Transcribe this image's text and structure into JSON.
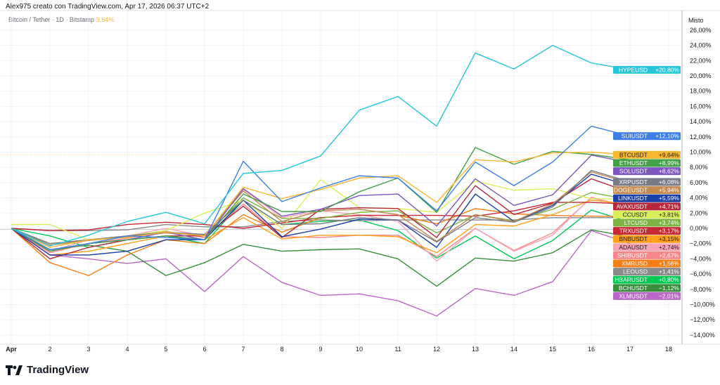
{
  "caption": "Alex975 creato con TradingView.com, Apr 17, 2026 06:37 UTC+2",
  "legend": {
    "symbol": "Bitcoin / Tether · 1D · Bitstamp",
    "value": "9,64%",
    "color": "#f7b731"
  },
  "axis_title": "Misto",
  "brand": "TradingView",
  "chart_data": {
    "type": "line",
    "x_tick_labels": [
      "Apr",
      "2",
      "3",
      "4",
      "5",
      "6",
      "7",
      "8",
      "9",
      "10",
      "11",
      "12",
      "13",
      "14",
      "15",
      "16",
      "17",
      "18"
    ],
    "x": [
      1,
      2,
      3,
      4,
      5,
      6,
      7,
      8,
      9,
      10,
      11,
      12,
      13,
      14,
      15,
      16,
      17
    ],
    "y_ticks": [
      "26,00%",
      "24,00%",
      "22,00%",
      "20,00%",
      "18,00%",
      "16,00%",
      "14,00%",
      "12,00%",
      "10,00%",
      "8,00%",
      "6,00%",
      "4,00%",
      "2,00%",
      "0,00%",
      "−2,00%",
      "−4,00%",
      "−6,00%",
      "−8,00%",
      "−10,00%",
      "−12,00%",
      "−14,00%"
    ],
    "ylim": [
      -15,
      27
    ],
    "xlim": [
      1,
      18.4
    ],
    "grid": true,
    "y_unit": "%",
    "series": [
      {
        "name": "HYPEUSD",
        "label": "+20,80%",
        "color": "#26c6da",
        "values": [
          0,
          -2.3,
          -0.9,
          0.9,
          2.1,
          0.6,
          7.2,
          7.6,
          9.5,
          15.5,
          17.3,
          13.4,
          23,
          20.9,
          24,
          21.7,
          20.8
        ]
      },
      {
        "name": "SUIUSDT",
        "label": "+12,10%",
        "color": "#3d7fe6",
        "values": [
          0,
          -2.8,
          -2.0,
          -1.0,
          -1.2,
          -1.5,
          8.8,
          3.5,
          5.3,
          6.9,
          6.6,
          2.3,
          8.7,
          5.6,
          8.7,
          13.4,
          12.1
        ]
      },
      {
        "name": "BTCUSDT",
        "label": "+9,64%",
        "color": "#f7b731",
        "values": [
          0,
          -2.5,
          -1.5,
          -1.2,
          -0.5,
          -1.0,
          5.4,
          3.9,
          5.1,
          6.6,
          6.9,
          3.4,
          9.0,
          8.7,
          9.9,
          10.0,
          9.64
        ]
      },
      {
        "name": "ETHUSDT",
        "label": "+8,99%",
        "color": "#43a047",
        "values": [
          0,
          -3.0,
          -2.0,
          -1.5,
          -1.0,
          -1.5,
          4.5,
          2.2,
          2.2,
          4.8,
          6.6,
          2.1,
          10.6,
          8.4,
          10.1,
          9.7,
          8.99
        ]
      },
      {
        "name": "SOLUSDT",
        "label": "+8,62%",
        "color": "#7e57c2",
        "values": [
          0,
          -3.0,
          -2.0,
          -1.5,
          -0.5,
          -1.5,
          5.2,
          1.6,
          2.5,
          4.3,
          4.5,
          0.3,
          6.5,
          3.0,
          4.4,
          9.6,
          8.62
        ]
      },
      {
        "name": "XRPUSDT",
        "label": "+6,08%",
        "color": "#787b86",
        "values": [
          0,
          -2.0,
          -1.5,
          -1.0,
          -0.5,
          -0.8,
          3.7,
          0.5,
          0.6,
          1.4,
          1.1,
          -1.8,
          1.4,
          0.8,
          2.8,
          7.6,
          6.08
        ]
      },
      {
        "name": "DOGEUSDT",
        "label": "+5,94%",
        "color": "#c48a4e",
        "values": [
          0,
          -2.2,
          -1.6,
          -1.1,
          -0.6,
          -0.9,
          4.9,
          0.9,
          2.3,
          2.5,
          1.8,
          -1.7,
          1.8,
          0.9,
          3.2,
          7.4,
          5.94
        ]
      },
      {
        "name": "LINKUSDT",
        "label": "+5,59%",
        "color": "#1a3fa6",
        "values": [
          0,
          -3.5,
          -3.5,
          -3.0,
          -1.5,
          -1.5,
          3.7,
          -1.1,
          -0.1,
          1.2,
          1.1,
          -2.5,
          4.5,
          0.9,
          3.0,
          7.1,
          5.59
        ]
      },
      {
        "name": "AVAXUSDT",
        "label": "+4,71%",
        "color": "#b5283a",
        "values": [
          0,
          -4.0,
          -2.5,
          -1.5,
          -1.0,
          -1.0,
          2.9,
          -1.2,
          2.5,
          2.7,
          2.6,
          -1.2,
          5.6,
          1.8,
          3.3,
          6.5,
          4.71
        ]
      },
      {
        "name": "CCUSDT",
        "label": "+3,81%",
        "color": "#d9f05a",
        "values": [
          0.5,
          0.5,
          -1.5,
          -1.0,
          -0.3,
          2.0,
          3.7,
          0,
          6.4,
          2.7,
          2.6,
          2.1,
          6.2,
          5.0,
          5.2,
          3.9,
          3.81
        ]
      },
      {
        "name": "LTCUSD",
        "label": "+3,74%",
        "color": "#7cb342",
        "values": [
          0,
          -2.0,
          -1.5,
          -1.0,
          -0.5,
          -1.0,
          4.0,
          1.3,
          1.3,
          2.1,
          2.3,
          -0.6,
          1.8,
          1.0,
          2.5,
          4.7,
          3.74
        ]
      },
      {
        "name": "TRXUSDT",
        "label": "+3,17%",
        "color": "#c62836",
        "values": [
          0,
          -0.3,
          -0.2,
          0.5,
          0.8,
          0.5,
          0,
          0.7,
          1.4,
          1.7,
          1.7,
          1.7,
          1.6,
          2.3,
          3.4,
          3.4,
          3.17
        ]
      },
      {
        "name": "BNBUSDT",
        "label": "+3,15%",
        "color": "#ff9f1a",
        "values": [
          0,
          -3.5,
          -3.0,
          -2.0,
          -1.0,
          -1.5,
          1.4,
          -1.4,
          -0.9,
          -0.9,
          -1.1,
          -3.2,
          0.5,
          0.3,
          1.8,
          3.7,
          3.15
        ]
      },
      {
        "name": "ADAUSDT",
        "label": "+2,74%",
        "color": "#f8a5b5",
        "values": [
          0,
          -3.0,
          -1.5,
          -1.0,
          0,
          -1.0,
          5.1,
          1.4,
          2.3,
          1.8,
          0.9,
          -4.3,
          0,
          -3.0,
          -0.9,
          4.1,
          2.74
        ]
      },
      {
        "name": "SHIBUSDT",
        "label": "+2,67%",
        "color": "#f7878a",
        "values": [
          0,
          -3.2,
          -2.0,
          -1.3,
          -0.4,
          -1.2,
          3.2,
          -1.1,
          -1.2,
          -0.9,
          -0.9,
          -3.7,
          0,
          -2.9,
          -0.6,
          4.0,
          2.67
        ]
      },
      {
        "name": "XMRUSD",
        "label": "+1,56%",
        "color": "#f57f17",
        "values": [
          0,
          -4.5,
          -6.2,
          -3.5,
          -1.5,
          -2.0,
          1.8,
          -0.5,
          1.4,
          1.7,
          1.7,
          0.6,
          2.6,
          1.9,
          1.7,
          1.6,
          1.56
        ]
      },
      {
        "name": "LEOUSD",
        "label": "+1,41%",
        "color": "#8a8a8a",
        "values": [
          0,
          -0.3,
          -0.3,
          -0.2,
          0.5,
          0.2,
          0.2,
          0.9,
          1.1,
          1.0,
          1.1,
          1.1,
          1.1,
          1.1,
          1.4,
          1.4,
          1.41
        ]
      },
      {
        "name": "HBARUSDT",
        "label": "+0,80%",
        "color": "#00c853",
        "values": [
          0,
          -1.0,
          -2.5,
          -1.5,
          -1.0,
          -2.0,
          3.7,
          0.5,
          0.9,
          1.1,
          -0.3,
          -3.9,
          -1.0,
          -4.0,
          -1.6,
          2.4,
          0.8
        ]
      },
      {
        "name": "BCHUSDT",
        "label": "−1,12%",
        "color": "#388e3c",
        "values": [
          0,
          -2.8,
          -2.2,
          -3.0,
          -6.2,
          -4.5,
          -2.1,
          -3.0,
          -2.8,
          -2.7,
          -4.0,
          -7.6,
          -3.9,
          -4.3,
          -3.2,
          -0.2,
          -1.12
        ]
      },
      {
        "name": "XLMUSDT",
        "label": "−2,01%",
        "color": "#ba68c8",
        "values": [
          0,
          -3.5,
          -4.0,
          -4.6,
          -4.0,
          -8.3,
          -3.7,
          -7.1,
          -8.8,
          -8.6,
          -9.5,
          -11.5,
          -7.9,
          -8.8,
          -7.0,
          -0.3,
          -2.01
        ]
      }
    ]
  }
}
